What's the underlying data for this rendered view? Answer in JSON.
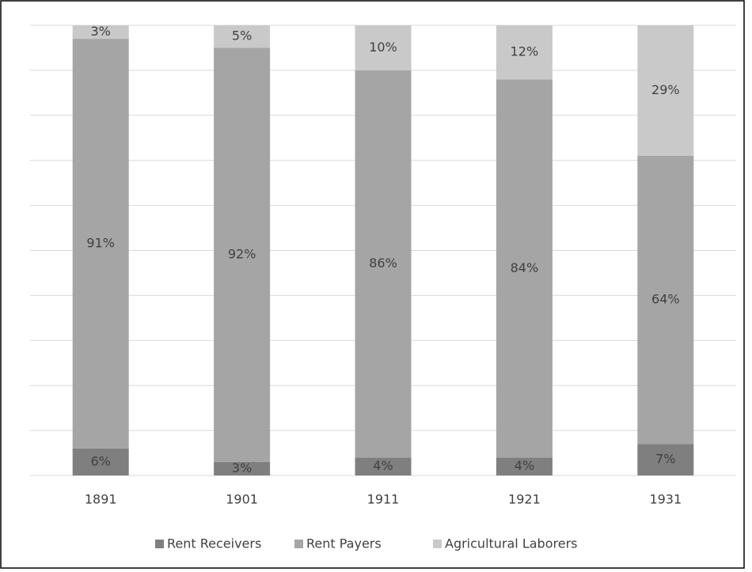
{
  "chart_data": {
    "type": "stacked_bar",
    "categories": [
      "1891",
      "1901",
      "1911",
      "1921",
      "1931"
    ],
    "series": [
      {
        "name": "Rent Receivers",
        "color": "#7f7f7f",
        "values": [
          6,
          3,
          4,
          4,
          7
        ],
        "value_labels": [
          "6%",
          "3%",
          "4%",
          "4%",
          "7%"
        ]
      },
      {
        "name": "Rent Payers",
        "color": "#a5a5a5",
        "values": [
          91,
          92,
          86,
          84,
          64
        ],
        "value_labels": [
          "91%",
          "92%",
          "86%",
          "84%",
          "64%"
        ]
      },
      {
        "name": "Agricultural Laborers",
        "color": "#c9c9c9",
        "values": [
          3,
          5,
          10,
          12,
          29
        ],
        "value_labels": [
          "3%",
          "5%",
          "10%",
          "12%",
          "29%"
        ]
      }
    ],
    "ylim": [
      0,
      100
    ],
    "yticks": [
      0,
      10,
      20,
      30,
      40,
      50,
      60,
      70,
      80,
      90,
      100
    ],
    "ytick_labels": false,
    "grid": true,
    "legend": "bottom"
  }
}
